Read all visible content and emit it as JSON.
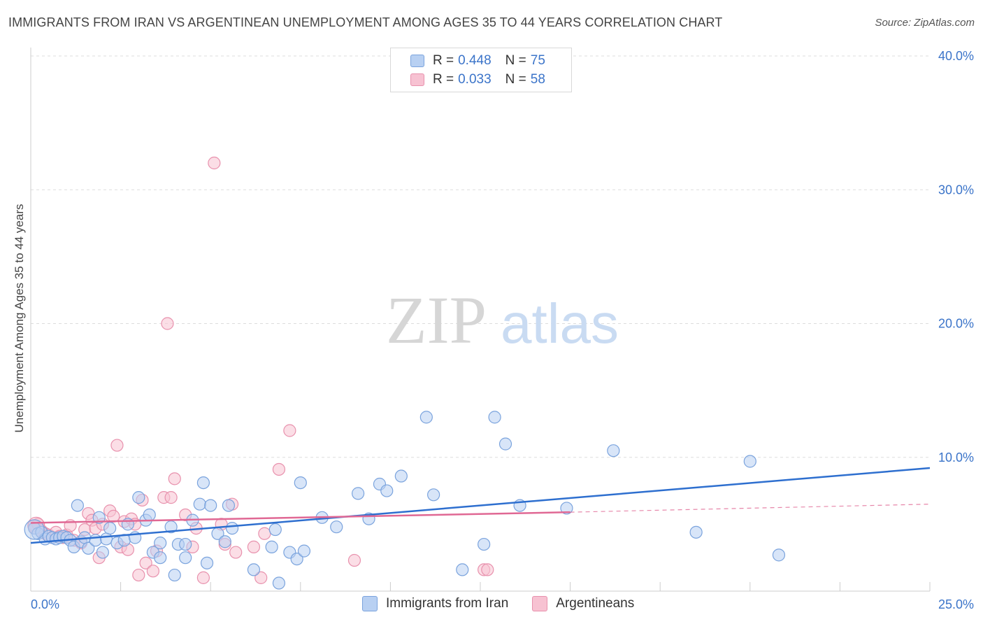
{
  "title": "IMMIGRANTS FROM IRAN VS ARGENTINEAN UNEMPLOYMENT AMONG AGES 35 TO 44 YEARS CORRELATION CHART",
  "source": "Source: ZipAtlas.com",
  "watermark": {
    "zip": "ZIP",
    "atlas": "atlas"
  },
  "colors": {
    "blue_fill": "#b8d0f2",
    "blue_stroke": "#7aa3dd",
    "blue_line": "#2e6fcf",
    "pink_fill": "#f7c2d2",
    "pink_stroke": "#e891ad",
    "pink_line": "#e06894",
    "axis_text": "#3b74c9",
    "grid": "#dddddd"
  },
  "legend": {
    "series1": {
      "r_label": "R =",
      "r_value": "0.448",
      "n_label": "N =",
      "n_value": "75"
    },
    "series2": {
      "r_label": "R =",
      "r_value": "0.033",
      "n_label": "N =",
      "n_value": "58"
    }
  },
  "bottom_legend": {
    "series1": "Immigrants from Iran",
    "series2": "Argentineans"
  },
  "chart_data": {
    "type": "scatter",
    "title": "IMMIGRANTS FROM IRAN VS ARGENTINEAN UNEMPLOYMENT AMONG AGES 35 TO 44 YEARS CORRELATION CHART",
    "xlabel": "",
    "ylabel": "Unemployment Among Ages 35 to 44 years",
    "xlim": [
      0,
      25
    ],
    "ylim": [
      0,
      40
    ],
    "x_tick_labels": [
      "0.0%",
      "25.0%"
    ],
    "y_ticks": [
      10,
      20,
      30,
      40
    ],
    "y_tick_labels": [
      "10.0%",
      "20.0%",
      "30.0%",
      "40.0%"
    ],
    "grid": true,
    "legend_position": "top-center",
    "series": [
      {
        "name": "Immigrants from Iran",
        "trend": {
          "x": [
            0,
            25
          ],
          "y": [
            3.6,
            9.2
          ],
          "style": "solid"
        },
        "points": [
          [
            0.1,
            4.7
          ],
          [
            0.2,
            4.3
          ],
          [
            0.3,
            4.4
          ],
          [
            0.4,
            3.9
          ],
          [
            0.5,
            4.1
          ],
          [
            0.6,
            4.0
          ],
          [
            0.7,
            3.9
          ],
          [
            0.8,
            4.0
          ],
          [
            0.9,
            4.1
          ],
          [
            1.0,
            4.0
          ],
          [
            1.1,
            3.8
          ],
          [
            1.2,
            3.3
          ],
          [
            1.3,
            6.4
          ],
          [
            1.4,
            3.7
          ],
          [
            1.5,
            4.0
          ],
          [
            1.6,
            3.2
          ],
          [
            1.8,
            3.8
          ],
          [
            1.9,
            5.5
          ],
          [
            2.0,
            2.9
          ],
          [
            2.1,
            3.9
          ],
          [
            2.2,
            4.7
          ],
          [
            2.4,
            3.6
          ],
          [
            2.6,
            3.8
          ],
          [
            2.7,
            5.0
          ],
          [
            2.9,
            4.0
          ],
          [
            3.0,
            7.0
          ],
          [
            3.2,
            5.3
          ],
          [
            3.3,
            5.7
          ],
          [
            3.4,
            2.9
          ],
          [
            3.6,
            3.6
          ],
          [
            3.6,
            2.5
          ],
          [
            3.9,
            4.8
          ],
          [
            4.0,
            1.2
          ],
          [
            4.1,
            3.5
          ],
          [
            4.3,
            2.5
          ],
          [
            4.3,
            3.5
          ],
          [
            4.5,
            5.3
          ],
          [
            4.7,
            6.5
          ],
          [
            4.8,
            8.1
          ],
          [
            4.9,
            2.1
          ],
          [
            5.0,
            6.4
          ],
          [
            5.2,
            4.3
          ],
          [
            5.4,
            3.7
          ],
          [
            5.5,
            6.4
          ],
          [
            5.6,
            4.7
          ],
          [
            6.2,
            1.6
          ],
          [
            6.7,
            3.3
          ],
          [
            6.8,
            4.6
          ],
          [
            6.9,
            0.6
          ],
          [
            7.2,
            2.9
          ],
          [
            7.4,
            2.4
          ],
          [
            7.6,
            3.0
          ],
          [
            7.5,
            8.1
          ],
          [
            8.1,
            5.5
          ],
          [
            8.5,
            4.8
          ],
          [
            9.1,
            7.3
          ],
          [
            9.4,
            5.4
          ],
          [
            9.7,
            8.0
          ],
          [
            9.9,
            7.5
          ],
          [
            10.3,
            8.6
          ],
          [
            11.0,
            13.0
          ],
          [
            11.2,
            7.2
          ],
          [
            12.0,
            1.6
          ],
          [
            12.6,
            3.5
          ],
          [
            12.9,
            13.0
          ],
          [
            13.2,
            11.0
          ],
          [
            13.6,
            6.4
          ],
          [
            14.9,
            6.2
          ],
          [
            16.2,
            10.5
          ],
          [
            18.5,
            4.4
          ],
          [
            20.0,
            9.7
          ],
          [
            20.8,
            2.7
          ]
        ]
      },
      {
        "name": "Argentineans",
        "trend": {
          "x": [
            0,
            15
          ],
          "y": [
            5.1,
            5.9
          ],
          "style": "solid",
          "extension": {
            "x": [
              15,
              25
            ],
            "y": [
              5.9,
              6.5
            ],
            "style": "dashed"
          }
        },
        "points": [
          [
            0.1,
            4.9
          ],
          [
            0.2,
            5.0
          ],
          [
            0.3,
            4.5
          ],
          [
            0.4,
            4.3
          ],
          [
            0.5,
            4.2
          ],
          [
            0.6,
            4.0
          ],
          [
            0.7,
            4.4
          ],
          [
            0.8,
            4.1
          ],
          [
            0.9,
            4.0
          ],
          [
            1.0,
            4.2
          ],
          [
            1.1,
            4.9
          ],
          [
            1.2,
            3.8
          ],
          [
            1.4,
            3.6
          ],
          [
            1.5,
            4.6
          ],
          [
            1.6,
            5.8
          ],
          [
            1.7,
            5.3
          ],
          [
            1.8,
            4.7
          ],
          [
            1.9,
            2.5
          ],
          [
            2.0,
            5.0
          ],
          [
            2.2,
            6.0
          ],
          [
            2.3,
            5.6
          ],
          [
            2.4,
            10.9
          ],
          [
            2.5,
            3.3
          ],
          [
            2.6,
            5.2
          ],
          [
            2.7,
            3.1
          ],
          [
            2.8,
            5.4
          ],
          [
            2.9,
            5.0
          ],
          [
            3.0,
            1.2
          ],
          [
            3.1,
            6.8
          ],
          [
            3.2,
            2.1
          ],
          [
            3.4,
            1.5
          ],
          [
            3.5,
            3.0
          ],
          [
            3.7,
            7.0
          ],
          [
            3.8,
            20.0
          ],
          [
            3.9,
            7.0
          ],
          [
            4.0,
            8.4
          ],
          [
            4.3,
            5.7
          ],
          [
            4.5,
            3.3
          ],
          [
            4.6,
            4.7
          ],
          [
            4.8,
            1.0
          ],
          [
            5.1,
            32.0
          ],
          [
            5.3,
            5.0
          ],
          [
            5.4,
            3.5
          ],
          [
            5.6,
            6.5
          ],
          [
            5.7,
            2.9
          ],
          [
            6.2,
            3.3
          ],
          [
            6.4,
            1.0
          ],
          [
            6.5,
            4.3
          ],
          [
            6.9,
            9.1
          ],
          [
            7.2,
            12.0
          ],
          [
            9.0,
            2.3
          ],
          [
            12.6,
            1.6
          ],
          [
            12.7,
            1.6
          ]
        ]
      }
    ]
  }
}
